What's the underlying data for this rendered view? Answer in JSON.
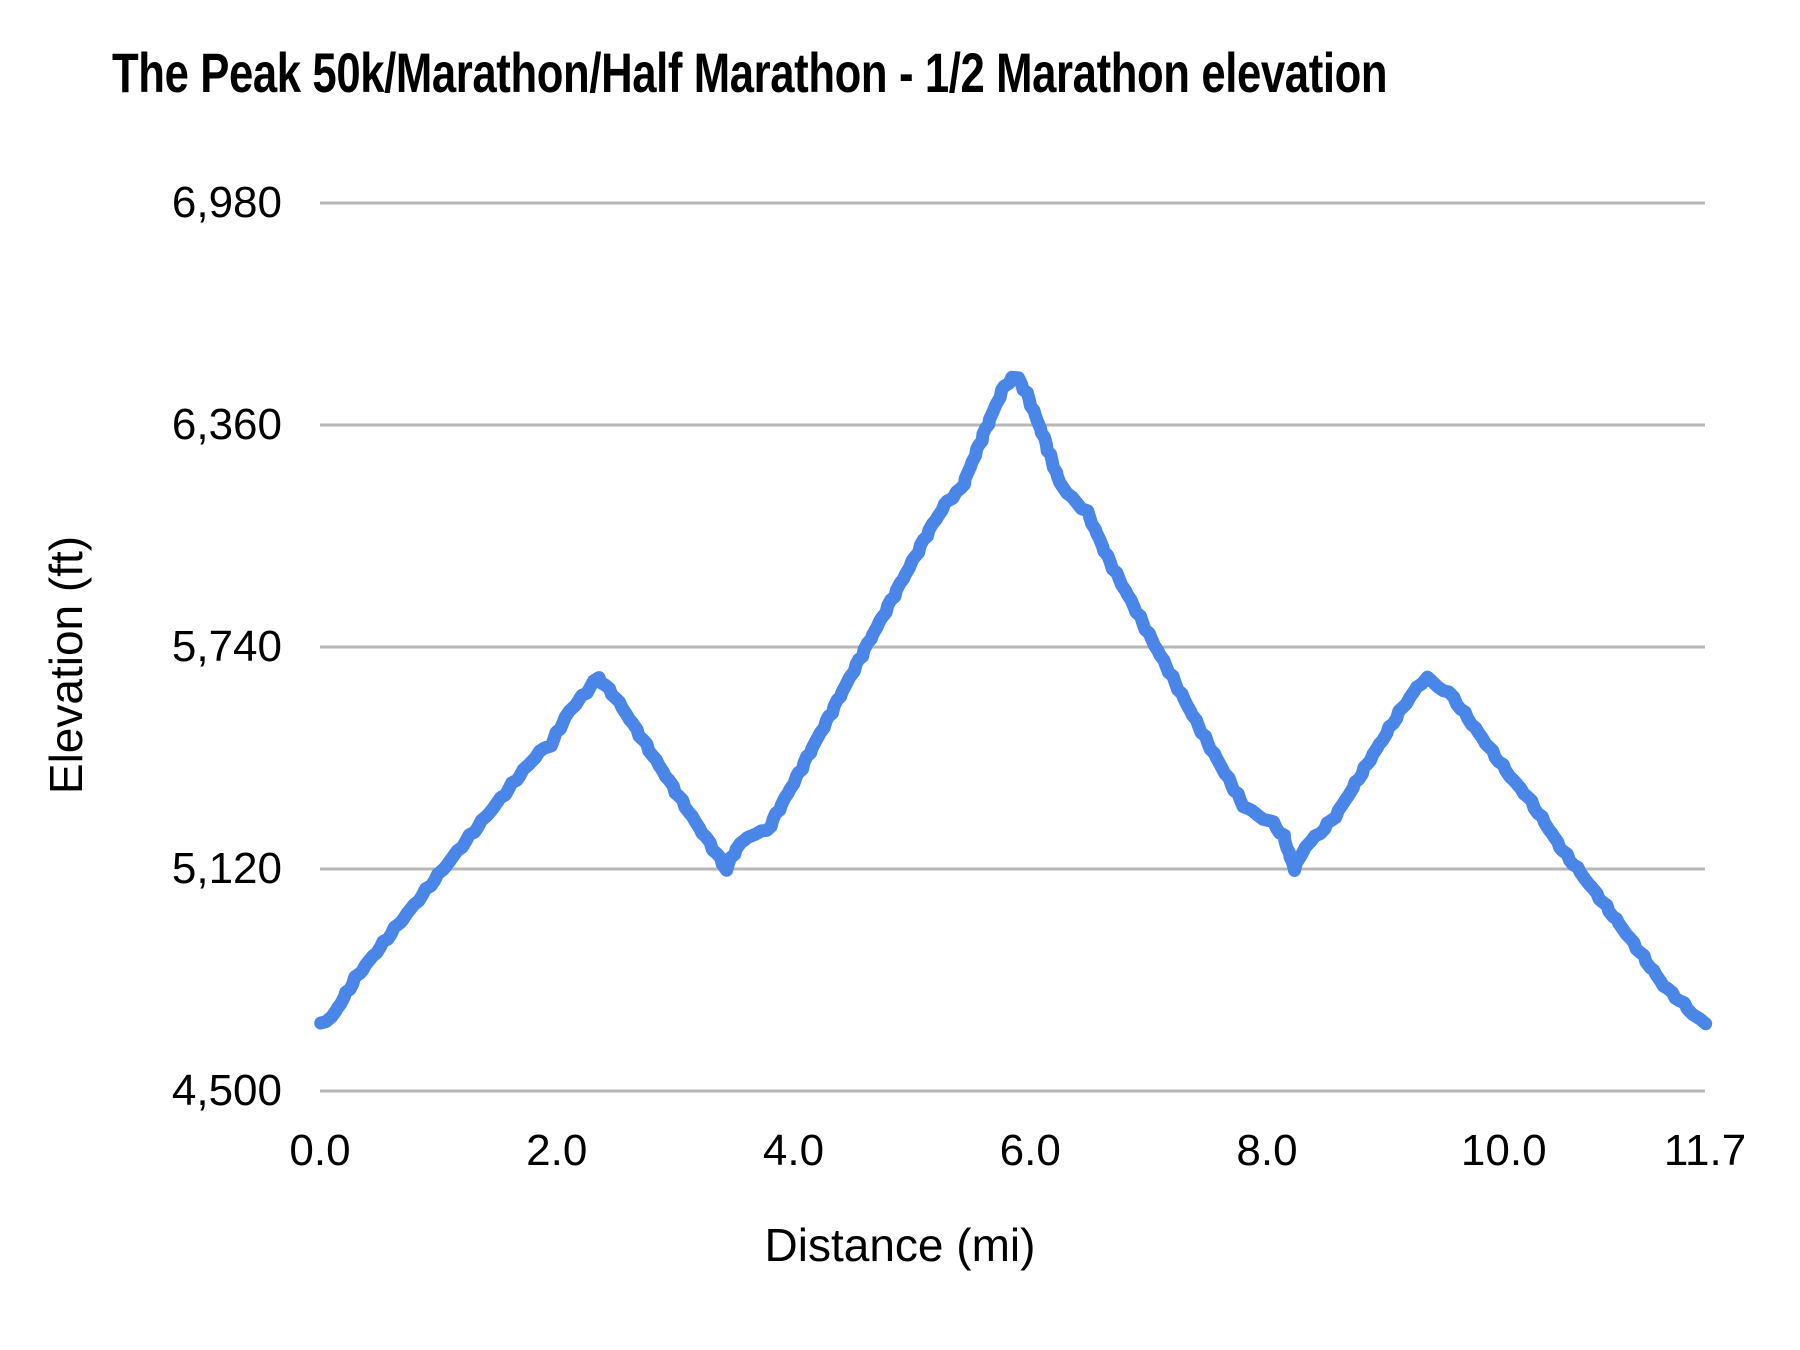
{
  "chart_data": {
    "type": "line",
    "title": "The Peak 50k/Marathon/Half Marathon - 1/2 Marathon elevation",
    "xlabel": "Distance (mi)",
    "ylabel": "Elevation (ft)",
    "xlim": [
      0,
      11.7
    ],
    "ylim": [
      4500,
      6980
    ],
    "grid": "horizontal",
    "legend": "none",
    "x_ticks": [
      {
        "value": 0.0,
        "label": "0.0"
      },
      {
        "value": 2.0,
        "label": "2.0"
      },
      {
        "value": 4.0,
        "label": "4.0"
      },
      {
        "value": 6.0,
        "label": "6.0"
      },
      {
        "value": 8.0,
        "label": "8.0"
      },
      {
        "value": 10.0,
        "label": "10.0"
      },
      {
        "value": 11.7,
        "label": "11.7"
      }
    ],
    "y_ticks": [
      {
        "value": 4500,
        "label": "4,500"
      },
      {
        "value": 5120,
        "label": "5,120"
      },
      {
        "value": 5740,
        "label": "5,740"
      },
      {
        "value": 6360,
        "label": "6,360"
      },
      {
        "value": 6980,
        "label": "6,980"
      }
    ],
    "series": [
      {
        "color": "#4a86e8",
        "marker_radius": 6.5,
        "points": [
          [
            0.0,
            4690
          ],
          [
            0.1,
            4705
          ],
          [
            0.3,
            4815
          ],
          [
            0.6,
            4940
          ],
          [
            0.9,
            5062
          ],
          [
            1.2,
            5185
          ],
          [
            1.5,
            5306
          ],
          [
            1.72,
            5395
          ],
          [
            1.85,
            5445
          ],
          [
            1.95,
            5468
          ],
          [
            2.1,
            5558
          ],
          [
            2.25,
            5615
          ],
          [
            2.35,
            5655
          ],
          [
            2.5,
            5598
          ],
          [
            2.7,
            5495
          ],
          [
            2.95,
            5365
          ],
          [
            3.2,
            5237
          ],
          [
            3.38,
            5148
          ],
          [
            3.43,
            5120
          ],
          [
            3.52,
            5178
          ],
          [
            3.62,
            5212
          ],
          [
            3.78,
            5228
          ],
          [
            4.0,
            5360
          ],
          [
            4.3,
            5545
          ],
          [
            4.6,
            5732
          ],
          [
            4.9,
            5915
          ],
          [
            5.15,
            6068
          ],
          [
            5.3,
            6148
          ],
          [
            5.42,
            6182
          ],
          [
            5.55,
            6290
          ],
          [
            5.7,
            6408
          ],
          [
            5.78,
            6468
          ],
          [
            5.85,
            6492
          ],
          [
            5.9,
            6488
          ],
          [
            5.97,
            6448
          ],
          [
            6.1,
            6338
          ],
          [
            6.25,
            6198
          ],
          [
            6.35,
            6155
          ],
          [
            6.48,
            6118
          ],
          [
            6.65,
            5992
          ],
          [
            6.9,
            5838
          ],
          [
            7.2,
            5655
          ],
          [
            7.5,
            5472
          ],
          [
            7.8,
            5298
          ],
          [
            7.92,
            5270
          ],
          [
            8.05,
            5248
          ],
          [
            8.14,
            5212
          ],
          [
            8.23,
            5120
          ],
          [
            8.33,
            5185
          ],
          [
            8.45,
            5222
          ],
          [
            8.58,
            5268
          ],
          [
            8.75,
            5360
          ],
          [
            8.95,
            5468
          ],
          [
            9.12,
            5558
          ],
          [
            9.27,
            5628
          ],
          [
            9.35,
            5655
          ],
          [
            9.44,
            5630
          ],
          [
            9.54,
            5612
          ],
          [
            9.7,
            5540
          ],
          [
            9.9,
            5448
          ],
          [
            10.08,
            5368
          ],
          [
            10.2,
            5322
          ],
          [
            10.35,
            5248
          ],
          [
            10.5,
            5170
          ],
          [
            10.62,
            5122
          ],
          [
            10.78,
            5052
          ],
          [
            10.95,
            4978
          ],
          [
            11.15,
            4888
          ],
          [
            11.35,
            4795
          ],
          [
            11.52,
            4742
          ],
          [
            11.63,
            4705
          ],
          [
            11.7,
            4690
          ]
        ]
      }
    ]
  },
  "colors": {
    "line": "#4a86e8",
    "grid": "#b7b7b7",
    "text": "#000000",
    "background": "#ffffff"
  }
}
